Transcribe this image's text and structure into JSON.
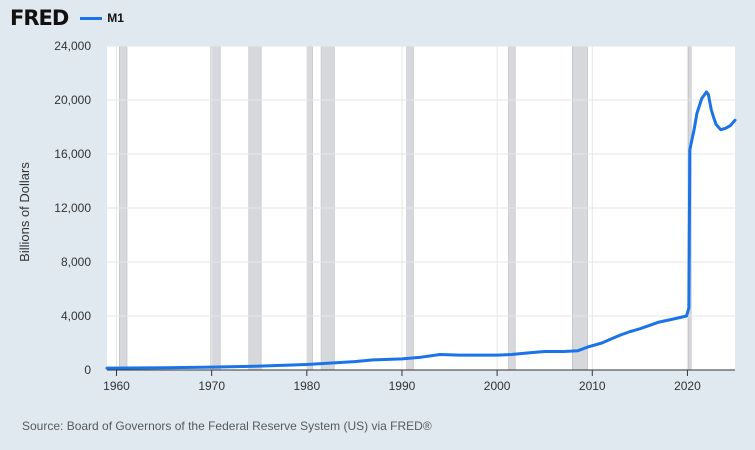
{
  "header": {
    "logo": "FRED",
    "legend_label": "M1"
  },
  "source": "Source: Board of Governors of the Federal Reserve System (US) via FRED®",
  "colors": {
    "series": "#1a74e8",
    "recession": "#d6d8db",
    "background": "#e1e9f0",
    "plot": "#ffffff",
    "grid": "#e6e6e6"
  },
  "chart_data": {
    "type": "line",
    "title": "",
    "xlabel": "",
    "ylabel": "Billions of Dollars",
    "xlim": [
      1959,
      2025
    ],
    "ylim": [
      0,
      24000
    ],
    "x_ticks": [
      "1960",
      "1970",
      "1980",
      "1990",
      "2000",
      "2010",
      "2020"
    ],
    "y_ticks": [
      "0",
      "4,000",
      "8,000",
      "12,000",
      "16,000",
      "20,000",
      "24,000"
    ],
    "grid": true,
    "legend_position": "top-left",
    "recessions": [
      [
        1960.3,
        1961.1
      ],
      [
        1969.9,
        1970.9
      ],
      [
        1973.9,
        1975.2
      ],
      [
        1980.0,
        1980.6
      ],
      [
        1981.5,
        1982.9
      ],
      [
        1990.5,
        1991.2
      ],
      [
        2001.2,
        2001.9
      ],
      [
        2007.9,
        2009.5
      ],
      [
        2020.1,
        2020.4
      ]
    ],
    "series": [
      {
        "name": "M1",
        "x": [
          1959,
          1965,
          1970,
          1975,
          1980,
          1985,
          1987,
          1990,
          1992,
          1994,
          1996,
          1998,
          2000,
          2001.5,
          2003,
          2005,
          2007,
          2008.5,
          2009.5,
          2011,
          2012,
          2013,
          2014,
          2015,
          2016,
          2017,
          2018,
          2019,
          2019.9,
          2020.15,
          2020.25,
          2020.4,
          2020.7,
          2021,
          2021.5,
          2022,
          2022.2,
          2022.5,
          2022.8,
          2023,
          2023.5,
          2024,
          2024.5,
          2025
        ],
        "y": [
          140,
          170,
          215,
          290,
          410,
          620,
          750,
          820,
          950,
          1150,
          1100,
          1100,
          1100,
          1150,
          1250,
          1370,
          1370,
          1430,
          1700,
          2000,
          2300,
          2600,
          2850,
          3050,
          3300,
          3550,
          3700,
          3850,
          4000,
          4600,
          16300,
          16800,
          17800,
          19000,
          20100,
          20600,
          20400,
          19300,
          18600,
          18200,
          17800,
          17900,
          18100,
          18500
        ]
      }
    ]
  }
}
